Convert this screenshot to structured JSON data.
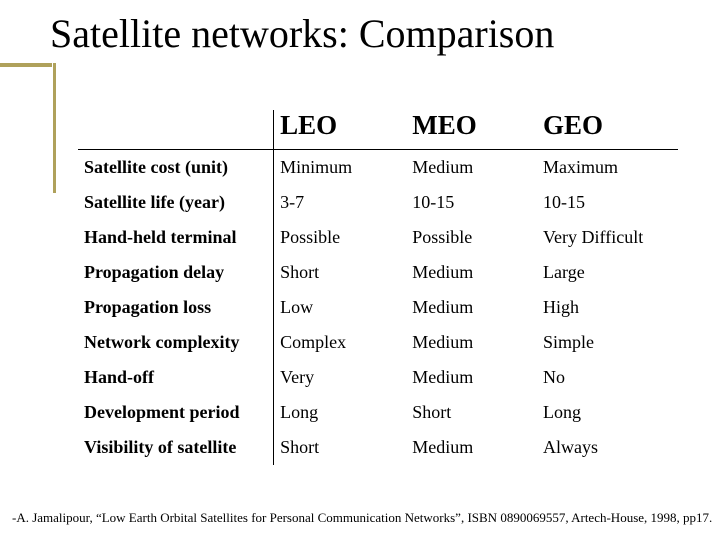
{
  "title": "Satellite networks: Comparison",
  "accent_color": "#afa15b",
  "table": {
    "columns": [
      "LEO",
      "MEO",
      "GEO"
    ],
    "rows": [
      {
        "label": "Satellite cost (unit)",
        "cells": [
          "Minimum",
          "Medium",
          "Maximum"
        ]
      },
      {
        "label": "Satellite life (year)",
        "cells": [
          "3-7",
          "10-15",
          "10-15"
        ]
      },
      {
        "label": "Hand-held terminal",
        "cells": [
          "Possible",
          "Possible",
          "Very Difficult"
        ]
      },
      {
        "label": "Propagation delay",
        "cells": [
          "Short",
          "Medium",
          "Large"
        ]
      },
      {
        "label": "Propagation loss",
        "cells": [
          "Low",
          "Medium",
          "High"
        ]
      },
      {
        "label": "Network complexity",
        "cells": [
          "Complex",
          "Medium",
          "Simple"
        ]
      },
      {
        "label": "Hand-off",
        "cells": [
          "Very",
          "Medium",
          "No"
        ]
      },
      {
        "label": "Development period",
        "cells": [
          "Long",
          "Short",
          "Long"
        ]
      },
      {
        "label": "Visibility of satellite",
        "cells": [
          "Short",
          "Medium",
          "Always"
        ]
      }
    ],
    "header_fontsize": 27,
    "body_fontsize": 18,
    "border_color": "#000000"
  },
  "citation": "-A. Jamalipour, “Low Earth Orbital Satellites for Personal Communication Networks”, ISBN 0890069557, Artech-House, 1998, pp17."
}
